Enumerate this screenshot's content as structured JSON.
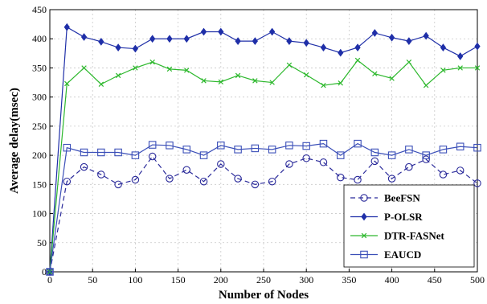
{
  "chart_data": {
    "type": "line",
    "title": "",
    "xlabel": "Number of Nodes",
    "ylabel": "Average delay(msec)",
    "xlim": [
      0,
      500
    ],
    "ylim": [
      0,
      450
    ],
    "x_ticks": [
      0,
      50,
      100,
      150,
      200,
      250,
      300,
      350,
      400,
      450,
      500
    ],
    "y_ticks": [
      0,
      50,
      100,
      150,
      200,
      250,
      300,
      350,
      400,
      450
    ],
    "grid": true,
    "legend_position": "bottom-right",
    "x": [
      0,
      20,
      40,
      60,
      80,
      100,
      120,
      140,
      160,
      180,
      200,
      220,
      240,
      260,
      280,
      300,
      320,
      340,
      360,
      380,
      400,
      420,
      440,
      460,
      480,
      500
    ],
    "series": [
      {
        "name": "BeeFSN",
        "color": "#2a2a9a",
        "line_style": "dashed",
        "marker": "circle",
        "values": [
          0,
          155,
          180,
          167,
          150,
          158,
          198,
          160,
          175,
          155,
          185,
          160,
          150,
          155,
          185,
          195,
          188,
          162,
          158,
          190,
          160,
          180,
          193,
          167,
          174,
          152
        ]
      },
      {
        "name": "P-OLSR",
        "color": "#1f2fa8",
        "line_style": "solid",
        "marker": "diamond",
        "values": [
          0,
          420,
          403,
          395,
          385,
          383,
          400,
          400,
          400,
          412,
          412,
          396,
          396,
          412,
          396,
          393,
          385,
          376,
          385,
          410,
          402,
          396,
          405,
          385,
          370,
          387
        ]
      },
      {
        "name": "DTR-FASNet",
        "color": "#2db82d",
        "line_style": "solid",
        "marker": "x",
        "values": [
          0,
          323,
          350,
          322,
          337,
          350,
          360,
          348,
          346,
          328,
          326,
          337,
          328,
          325,
          355,
          338,
          320,
          324,
          363,
          340,
          332,
          360,
          320,
          346,
          350,
          350
        ]
      },
      {
        "name": "EAUCD",
        "color": "#3b4fb8",
        "line_style": "solid",
        "marker": "square",
        "values": [
          0,
          213,
          205,
          205,
          205,
          200,
          218,
          217,
          210,
          200,
          217,
          210,
          212,
          210,
          217,
          216,
          220,
          200,
          220,
          205,
          200,
          210,
          200,
          210,
          215,
          213
        ]
      }
    ]
  }
}
